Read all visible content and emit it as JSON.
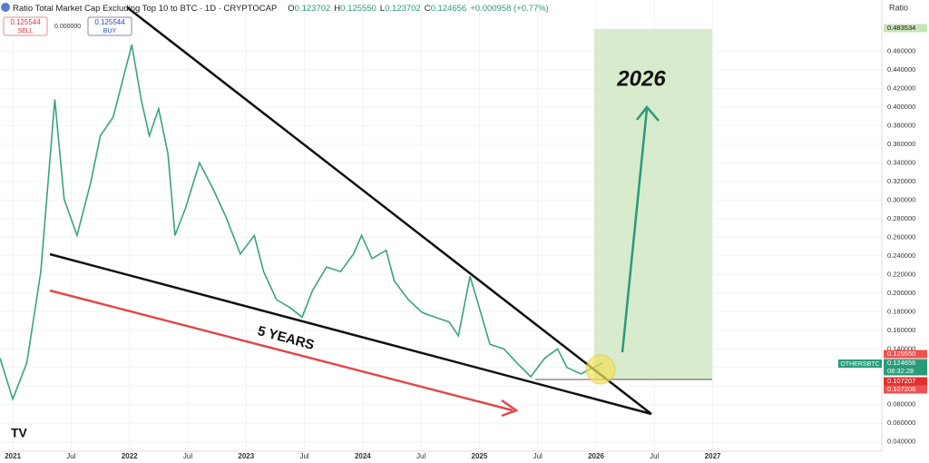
{
  "chart_data": {
    "type": "line",
    "title": "Ratio Total Market Cap Excluding Top 10 to BTC · 1D · CRYPTOCAP",
    "ohlc": [
      {
        "label": "O",
        "value": "0.123702"
      },
      {
        "label": "H",
        "value": "0.125550"
      },
      {
        "label": "L",
        "value": "0.123702"
      },
      {
        "label": "C",
        "value": "0.124656"
      }
    ],
    "change": "+0.000958 (+0.77%)",
    "sell": {
      "price": "0.125544",
      "label": "SELL"
    },
    "spread": "0.000000",
    "buy": {
      "price": "0.125544",
      "label": "BUY"
    },
    "axis_label": "Ratio",
    "annotations": [
      "2026",
      "5 YEARS"
    ],
    "symbol": "OTHERSBTC",
    "price_tags": [
      "0.483534",
      "0.125550",
      "0.124656",
      "08:32:28",
      "0.107207",
      "0.107206"
    ],
    "x": [
      2020.89,
      2021.0,
      2021.12,
      2021.24,
      2021.36,
      2021.44,
      2021.55,
      2021.67,
      2021.75,
      2021.86,
      2021.94,
      2022.02,
      2022.1,
      2022.17,
      2022.25,
      2022.33,
      2022.39,
      2022.48,
      2022.6,
      2022.72,
      2022.83,
      2022.95,
      2023.07,
      2023.15,
      2023.26,
      2023.38,
      2023.48,
      2023.57,
      2023.69,
      2023.81,
      2023.92,
      2023.99,
      2024.08,
      2024.2,
      2024.27,
      2024.39,
      2024.51,
      2024.62,
      2024.74,
      2024.82,
      2024.92,
      2025.0,
      2025.09,
      2025.21,
      2025.32,
      2025.44,
      2025.56,
      2025.67,
      2025.75,
      2025.87,
      2025.98,
      2026.06
    ],
    "series": [
      {
        "name": "OTHERSBTC",
        "color": "#3aa37a",
        "values": [
          0.13,
          0.086,
          0.125,
          0.223,
          0.408,
          0.301,
          0.262,
          0.32,
          0.369,
          0.389,
          0.428,
          0.467,
          0.408,
          0.369,
          0.398,
          0.35,
          0.262,
          0.291,
          0.34,
          0.311,
          0.281,
          0.242,
          0.262,
          0.223,
          0.193,
          0.184,
          0.174,
          0.203,
          0.228,
          0.223,
          0.242,
          0.262,
          0.237,
          0.246,
          0.213,
          0.193,
          0.179,
          0.174,
          0.169,
          0.154,
          0.218,
          0.184,
          0.145,
          0.14,
          0.125,
          0.11,
          0.13,
          0.14,
          0.12,
          0.113,
          0.12,
          0.125
        ]
      }
    ],
    "xlim": [
      2020.89,
      2028.45
    ],
    "xticks": [
      2021,
      {
        "value": 2021.5,
        "label": "Jul"
      },
      2022,
      {
        "value": 2022.5,
        "label": "Jul"
      },
      2023,
      {
        "value": 2023.5,
        "label": "Jul"
      },
      2024,
      {
        "value": 2024.5,
        "label": "Jul"
      },
      2025,
      {
        "value": 2025.5,
        "label": "Jul"
      },
      2026,
      {
        "value": 2026.5,
        "label": "Jul"
      },
      2027
    ],
    "ylim": [
      0.03,
      0.515
    ],
    "yticks": [
      {
        "value": 0.04,
        "label": "0.040000"
      },
      {
        "value": 0.06,
        "label": "0.060000"
      },
      {
        "value": 0.08,
        "label": "0.080000"
      },
      {
        "value": 0.1,
        "label": "0.100000"
      },
      {
        "value": 0.12,
        "label": "0.120000"
      },
      {
        "value": 0.14,
        "label": "0.140000"
      },
      {
        "value": 0.16,
        "label": "0.160000"
      },
      {
        "value": 0.18,
        "label": "0.180000"
      },
      {
        "value": 0.2,
        "label": "0.200000"
      },
      {
        "value": 0.22,
        "label": "0.220000"
      },
      {
        "value": 0.24,
        "label": "0.240000"
      },
      {
        "value": 0.26,
        "label": "0.260000"
      },
      {
        "value": 0.28,
        "label": "0.280000"
      },
      {
        "value": 0.3,
        "label": "0.300000"
      },
      {
        "value": 0.32,
        "label": "0.320000"
      },
      {
        "value": 0.34,
        "label": "0.340000"
      },
      {
        "value": 0.36,
        "label": "0.360000"
      },
      {
        "value": 0.38,
        "label": "0.380000"
      },
      {
        "value": 0.4,
        "label": "0.400000"
      },
      {
        "value": 0.42,
        "label": "0.420000"
      },
      {
        "value": 0.44,
        "label": "0.440000"
      },
      {
        "value": 0.46,
        "label": "0.460000"
      }
    ],
    "grid": true
  }
}
